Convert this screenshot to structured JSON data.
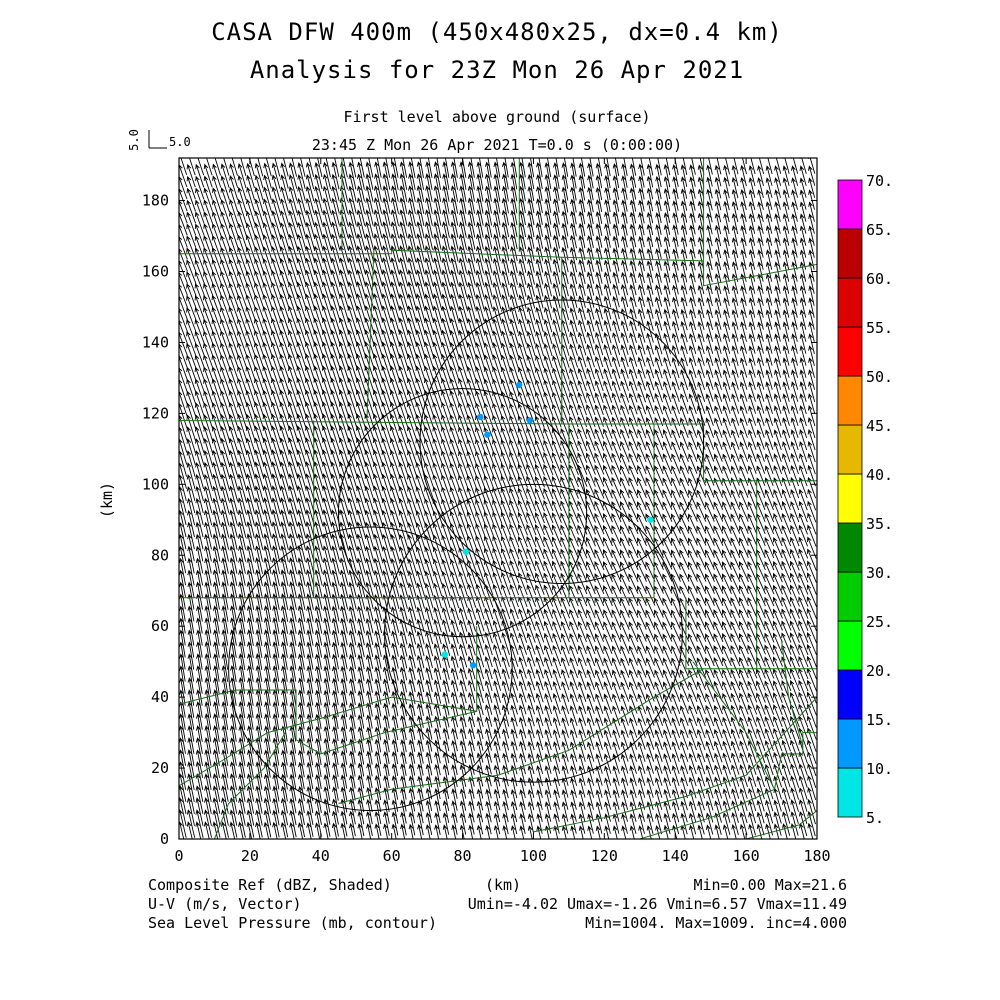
{
  "header": {
    "title_line1": "CASA DFW 400m (450x480x25, dx=0.4 km)",
    "title_line2": "Analysis for 23Z Mon 26 Apr 2021",
    "level": "First level above ground (surface)",
    "time": "23:45 Z Mon 26 Apr 2021    T=0.0 s (0:00:00)",
    "vector_ref_vertical": "5.0",
    "vector_ref_horizontal": "5.0"
  },
  "chart_data": {
    "type": "heatmap",
    "xlabel": "(km)",
    "ylabel": "(km)",
    "xlim": [
      0,
      180
    ],
    "ylim": [
      0,
      192
    ],
    "x_ticks": [
      "0",
      "20",
      "40",
      "60",
      "80",
      "100",
      "120",
      "140",
      "160",
      "180"
    ],
    "y_ticks": [
      "0",
      "20",
      "40",
      "60",
      "80",
      "100",
      "120",
      "140",
      "160",
      "180"
    ],
    "colorbar": {
      "labels": [
        "5.",
        "10.",
        "15.",
        "20.",
        "25.",
        "30.",
        "35.",
        "40.",
        "45.",
        "50.",
        "55.",
        "60.",
        "65.",
        "70."
      ],
      "colors": [
        "#00e5e5",
        "#0099ff",
        "#0000ff",
        "#00ff00",
        "#00cc00",
        "#008800",
        "#ffff00",
        "#e6b800",
        "#ff8800",
        "#ff0000",
        "#dd0000",
        "#bb0000",
        "#ff00ff"
      ]
    },
    "wind_vector": {
      "u_mean": -2.6,
      "v_mean": 9.0
    },
    "range_rings": [
      {
        "cx": 108,
        "cy": 112,
        "r": 40
      },
      {
        "cx": 80,
        "cy": 92,
        "r": 35
      },
      {
        "cx": 100,
        "cy": 58,
        "r": 42
      },
      {
        "cx": 54,
        "cy": 48,
        "r": 40
      }
    ],
    "reflectivity_points": [
      {
        "x": 96,
        "y": 128,
        "dbz": 13
      },
      {
        "x": 85,
        "y": 119,
        "dbz": 13
      },
      {
        "x": 99,
        "y": 118,
        "dbz": 13
      },
      {
        "x": 87,
        "y": 114,
        "dbz": 10
      },
      {
        "x": 81,
        "y": 81,
        "dbz": 8
      },
      {
        "x": 133,
        "y": 90,
        "dbz": 8
      },
      {
        "x": 75,
        "y": 52,
        "dbz": 9
      },
      {
        "x": 83,
        "y": 49,
        "dbz": 11
      }
    ],
    "footer": {
      "field1": "Composite Ref (dBZ, Shaded)",
      "field2": "U-V (m/s, Vector)",
      "field3": "Sea Level Pressure (mb, contour)",
      "axis_unit": "(km)",
      "stats1": "Min=0.00 Max=21.6",
      "stats2": "Umin=-4.02 Umax=-1.26 Vmin=6.57 Vmax=11.49",
      "stats3": "Min=1004. Max=1009. inc=4.000"
    }
  },
  "colors": {
    "boundary": "#1a6e1a",
    "vector": "#000000",
    "ring": "#000000"
  }
}
